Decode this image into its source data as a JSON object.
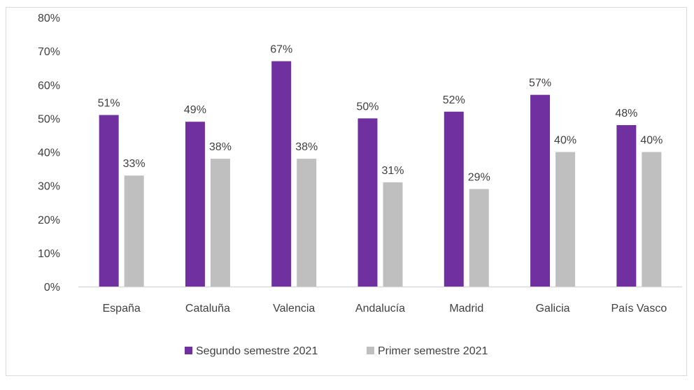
{
  "chart_data": {
    "type": "bar",
    "categories": [
      "España",
      "Cataluña",
      "Valencia",
      "Andalucía",
      "Madrid",
      "Galicia",
      "País Vasco"
    ],
    "series": [
      {
        "name": "Segundo semestre 2021",
        "values": [
          51,
          49,
          67,
          50,
          52,
          57,
          48
        ],
        "labels": [
          "51%",
          "49%",
          "67%",
          "50%",
          "52%",
          "57%",
          "48%"
        ],
        "color": "#7030a0"
      },
      {
        "name": "Primer semestre 2021",
        "values": [
          33,
          38,
          38,
          31,
          29,
          40,
          40
        ],
        "labels": [
          "33%",
          "38%",
          "38%",
          "31%",
          "29%",
          "40%",
          "40%"
        ],
        "color": "#bfbfbf"
      }
    ],
    "yticks": [
      "0%",
      "10%",
      "20%",
      "30%",
      "40%",
      "50%",
      "60%",
      "70%",
      "80%"
    ],
    "ylim": [
      0,
      80
    ],
    "title": "",
    "xlabel": "",
    "ylabel": "",
    "legend_position": "bottom",
    "grid": false,
    "axis_color": "#d9d9d9"
  }
}
